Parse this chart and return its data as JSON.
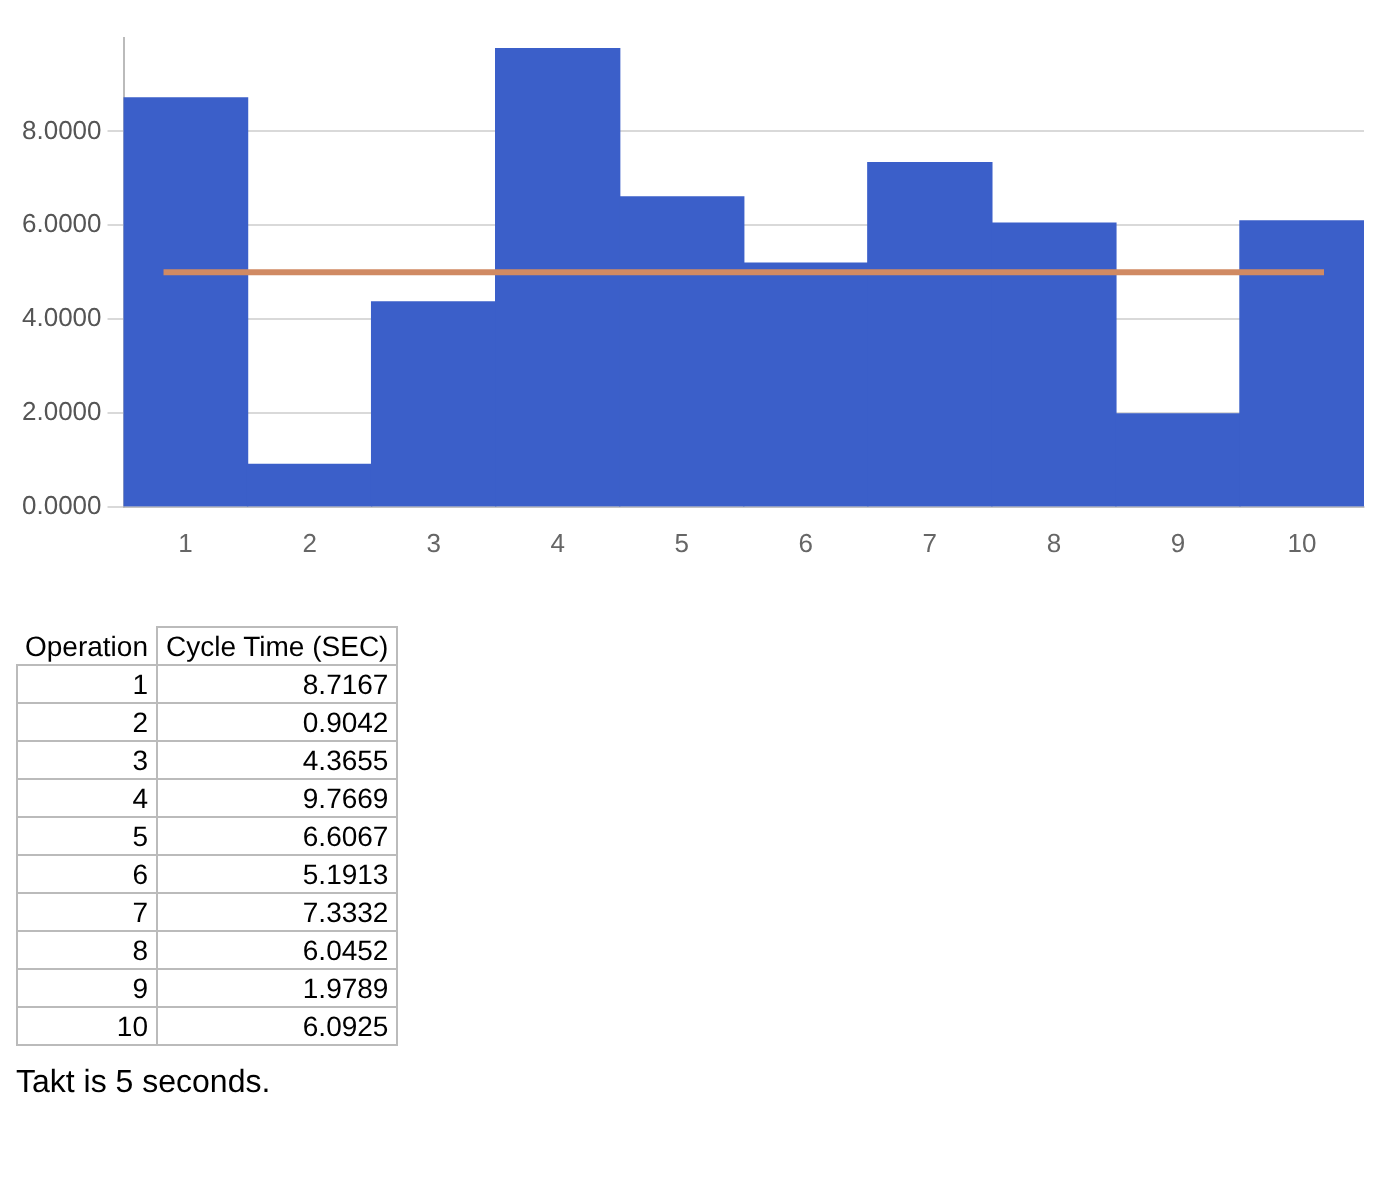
{
  "chart_data": [
    {
      "type": "bar",
      "categories": [
        "1",
        "2",
        "3",
        "4",
        "5",
        "6",
        "7",
        "8",
        "9",
        "10"
      ],
      "values": [
        8.7167,
        0.9042,
        4.3655,
        9.7669,
        6.6067,
        5.1913,
        7.3332,
        6.0452,
        1.9789,
        6.0925
      ],
      "color": "#3b5fc9",
      "ylim": [
        0,
        10
      ],
      "yticks": [
        {
          "value": 0,
          "label": "0.0000"
        },
        {
          "value": 2,
          "label": "2.0000"
        },
        {
          "value": 4,
          "label": "4.0000"
        },
        {
          "value": 6,
          "label": "6.0000"
        },
        {
          "value": 8,
          "label": "8.0000"
        }
      ],
      "grid": "y",
      "legend": false,
      "ref_lines": [
        {
          "axis": "y",
          "value": 5,
          "color": "#d08a63"
        }
      ]
    },
    {
      "type": "heatmap",
      "ylabel": "Operation",
      "categories": [
        "Cycle Time (SEC)"
      ],
      "y_categories": [
        "1",
        "2",
        "3",
        "4",
        "5",
        "6",
        "7",
        "8",
        "9",
        "10"
      ],
      "cells": [
        [
          8.7167
        ],
        [
          0.9042
        ],
        [
          4.3655
        ],
        [
          9.7669
        ],
        [
          6.6067
        ],
        [
          5.1913
        ],
        [
          7.3332
        ],
        [
          6.0452
        ],
        [
          1.9789
        ],
        [
          6.0925
        ]
      ],
      "data_labels": true,
      "annotations": [
        "Takt is 5 seconds."
      ]
    }
  ]
}
